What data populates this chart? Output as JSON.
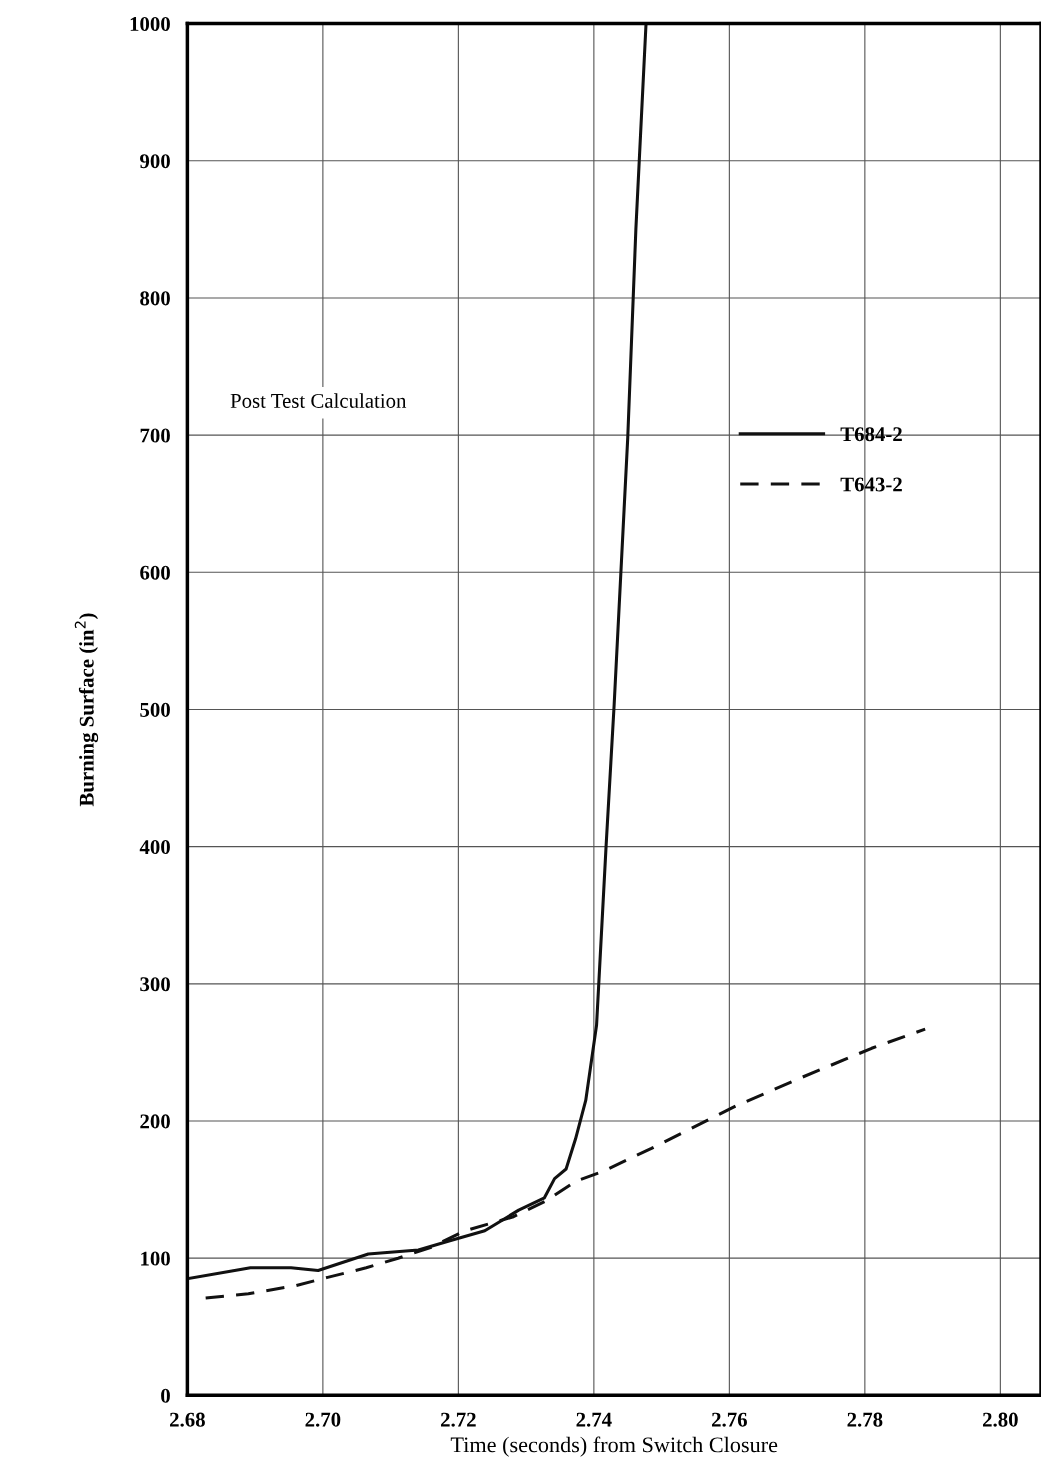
{
  "chart_data": {
    "type": "line",
    "xlabel": "Time (seconds) from Switch Closure",
    "ylabel": "Burning Surface (in$^{2}$)",
    "annotations": [
      "Post Test Calculation"
    ],
    "series": [
      {
        "name": "T684-2",
        "color": "#111111",
        "line_style": "solid",
        "x": [
          2.68,
          2.6893,
          2.6953,
          2.6993,
          2.7067,
          2.7141,
          2.719,
          2.7239,
          2.7289,
          2.7327,
          2.7342,
          2.7359,
          2.7373,
          2.7388,
          2.7404,
          2.7418,
          2.743,
          2.745,
          2.7462,
          2.7477
        ],
        "values": [
          85,
          93,
          93,
          91,
          103,
          106,
          113,
          120,
          135,
          144,
          158,
          165,
          187,
          215,
          270,
          400,
          504,
          698,
          850,
          1000
        ]
      },
      {
        "name": "T643-2",
        "color": "#111111",
        "line_style": "dashed",
        "x": [
          2.6827,
          2.689,
          2.696,
          2.7007,
          2.7064,
          2.7111,
          2.716,
          2.721,
          2.728,
          2.733,
          2.7373,
          2.7412,
          2.7485,
          2.761,
          2.7708,
          2.781,
          2.7889
        ],
        "values": [
          71,
          74,
          80,
          86,
          93,
          100,
          108,
          120,
          130,
          142,
          156,
          163,
          180,
          211,
          232,
          253,
          267
        ]
      }
    ],
    "xlim": [
      2.68,
      2.806
    ],
    "ylim": [
      0,
      1000
    ],
    "xticks": [
      {
        "value": 2.68,
        "label": "2.68"
      },
      {
        "value": 2.7,
        "label": "2.70"
      },
      {
        "value": 2.72,
        "label": "2.72"
      },
      {
        "value": 2.74,
        "label": "2.74"
      },
      {
        "value": 2.76,
        "label": "2.76"
      },
      {
        "value": 2.78,
        "label": "2.78"
      },
      {
        "value": 2.8,
        "label": "2.80"
      }
    ],
    "yticks": [
      0,
      100,
      200,
      300,
      400,
      500,
      600,
      700,
      800,
      900,
      1000
    ],
    "grid": true,
    "legend": "top right"
  }
}
